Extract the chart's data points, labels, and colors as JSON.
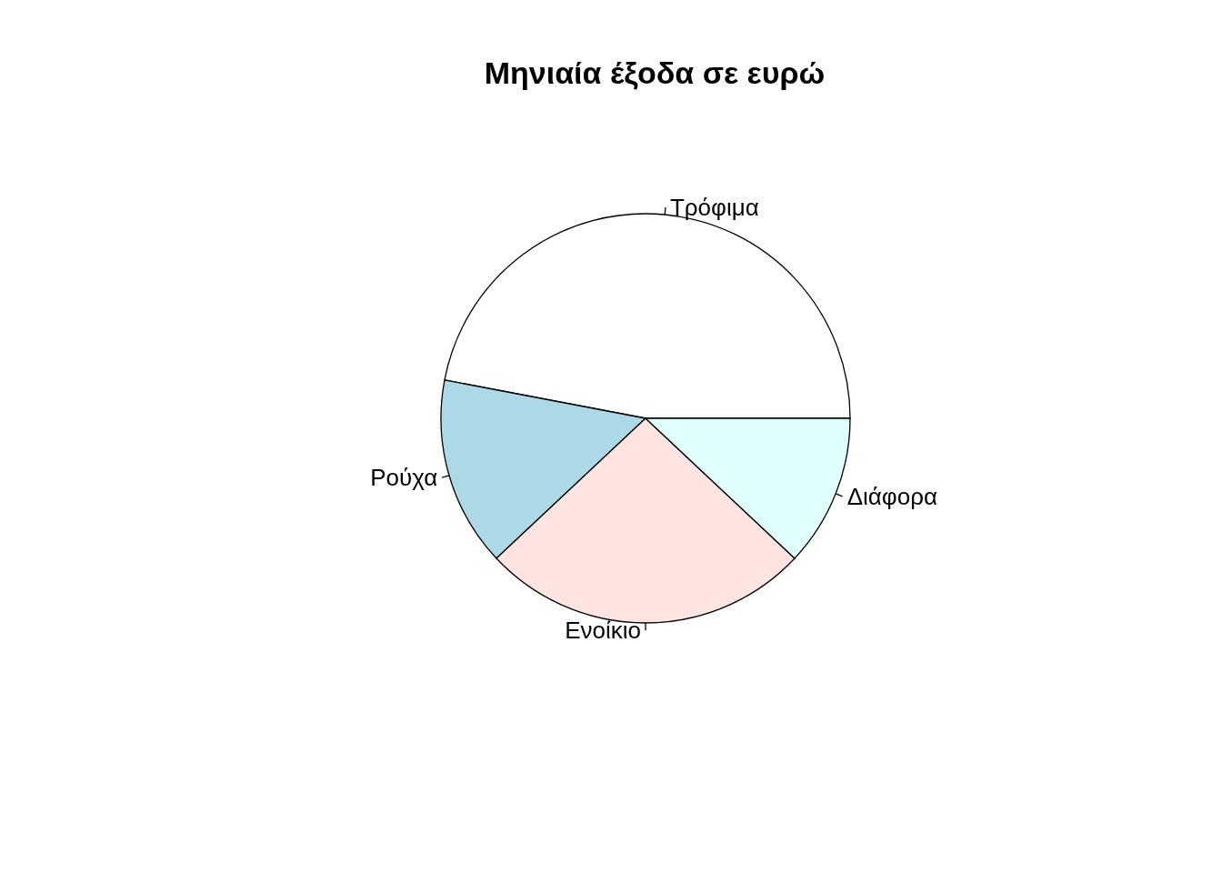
{
  "chart_data": {
    "type": "pie",
    "title": "Μηνιαία έξοδα σε ευρώ",
    "categories": [
      "Τρόφιμα",
      "Ρούχα",
      "Ενοίκιο",
      "Διάφορα"
    ],
    "values": [
      47,
      15,
      26,
      12
    ],
    "colors": [
      "#ffffff",
      "#add8e6",
      "#ffe4e1",
      "#e0ffff"
    ]
  }
}
